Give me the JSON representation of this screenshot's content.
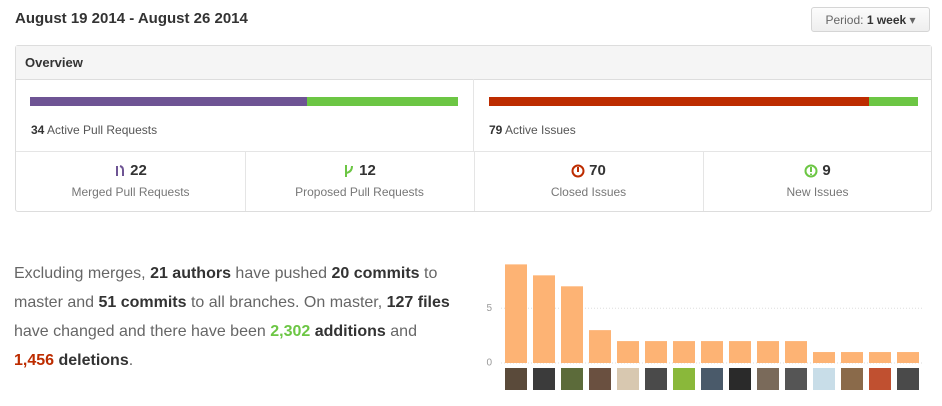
{
  "header": {
    "title": "August 19 2014 - August 26 2014",
    "period_label": "Period:",
    "period_value": "1 week"
  },
  "overview": {
    "title": "Overview",
    "pull_requests": {
      "active": 34,
      "active_label": "Active Pull Requests",
      "merged": 22,
      "merged_label": "Merged Pull Requests",
      "proposed": 12,
      "proposed_label": "Proposed Pull Requests",
      "merged_color": "#6e5494",
      "proposed_color": "#6cc644"
    },
    "issues": {
      "active": 79,
      "active_label": "Active Issues",
      "closed": 70,
      "closed_label": "Closed Issues",
      "new": 9,
      "new_label": "New Issues",
      "closed_color": "#bd2c00",
      "new_color": "#6cc644"
    }
  },
  "summary": {
    "segments": [
      {
        "text": "Excluding merges, "
      },
      {
        "text": "21 authors",
        "bold": true
      },
      {
        "text": " have pushed "
      },
      {
        "text": "20 commits",
        "bold": true
      },
      {
        "text": " to master and "
      },
      {
        "text": "51 commits",
        "bold": true
      },
      {
        "text": " to all branches. On master, "
      },
      {
        "text": "127 files",
        "bold": true
      },
      {
        "text": " have changed and there have been "
      },
      {
        "text": "2,302",
        "bold": true,
        "color": "#6cc644"
      },
      {
        "text": " additions",
        "bold": true
      },
      {
        "text": " and "
      },
      {
        "text": "1,456",
        "bold": true,
        "color": "#bd2c00"
      },
      {
        "text": " deletions",
        "bold": true
      },
      {
        "text": "."
      }
    ]
  },
  "chart_data": {
    "type": "bar",
    "categories": [
      null,
      null,
      null,
      null,
      null,
      null,
      null,
      null,
      null,
      null,
      null,
      null,
      null,
      null,
      null
    ],
    "values": [
      9,
      8,
      7,
      3,
      2,
      2,
      2,
      2,
      2,
      2,
      2,
      1,
      1,
      1,
      1
    ],
    "color": "#fdb374",
    "ylim": [
      0,
      9.4
    ],
    "yticks": [
      0,
      5
    ],
    "grid": true
  }
}
